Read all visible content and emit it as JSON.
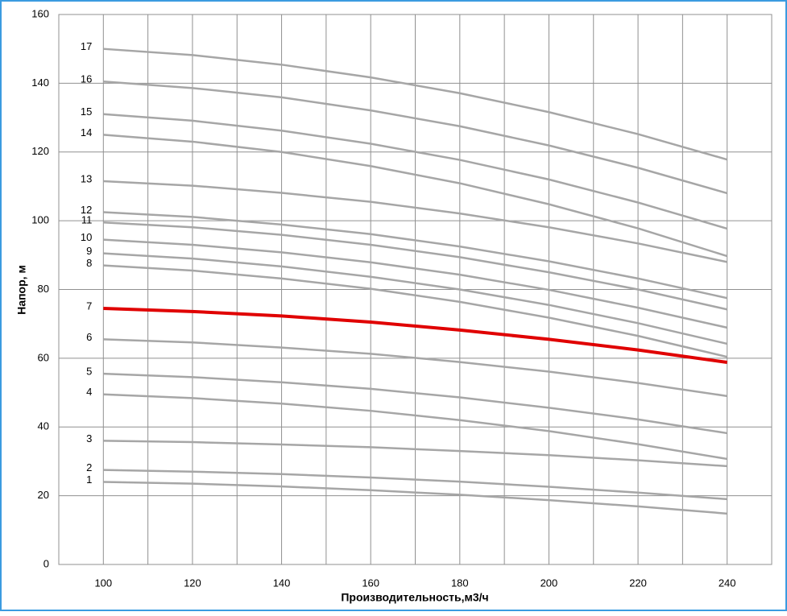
{
  "chart_data": {
    "type": "line",
    "xlabel": "Производительность,м3/ч",
    "ylabel": "Напор, м",
    "x": [
      100,
      120,
      140,
      160,
      180,
      200,
      220,
      240
    ],
    "xlim": [
      90,
      250
    ],
    "xticks": [
      100,
      120,
      140,
      160,
      180,
      200,
      220,
      240
    ],
    "ylim": [
      0,
      160
    ],
    "yticks": [
      0,
      20,
      40,
      60,
      80,
      100,
      120,
      140,
      160
    ],
    "grid": true,
    "series": [
      {
        "name": "1",
        "color": "#a6a6a6",
        "values": [
          24,
          23.5,
          22.7,
          21.6,
          20.3,
          18.7,
          16.9,
          14.8
        ]
      },
      {
        "name": "2",
        "color": "#a6a6a6",
        "values": [
          27.5,
          27.0,
          26.3,
          25.3,
          24.1,
          22.6,
          20.9,
          19.0
        ]
      },
      {
        "name": "3",
        "color": "#a6a6a6",
        "values": [
          36,
          35.6,
          34.9,
          34.1,
          33.0,
          31.8,
          30.3,
          28.6
        ]
      },
      {
        "name": "4",
        "color": "#a6a6a6",
        "values": [
          49.5,
          48.4,
          46.8,
          44.7,
          42.0,
          38.8,
          35.0,
          30.7
        ]
      },
      {
        "name": "5",
        "color": "#a6a6a6",
        "values": [
          55.5,
          54.5,
          53.0,
          51.1,
          48.6,
          45.6,
          42.2,
          38.2
        ]
      },
      {
        "name": "6",
        "color": "#a6a6a6",
        "values": [
          65.5,
          64.6,
          63.1,
          61.3,
          58.9,
          56.1,
          52.8,
          49.0
        ]
      },
      {
        "name": "7",
        "color": "#e00000",
        "values": [
          74.5,
          73.6,
          72.3,
          70.5,
          68.2,
          65.5,
          62.4,
          58.8
        ]
      },
      {
        "name": "8",
        "color": "#a6a6a6",
        "values": [
          87,
          85.5,
          83.2,
          80.2,
          76.4,
          71.8,
          66.5,
          60.4
        ]
      },
      {
        "name": "9",
        "color": "#a6a6a6",
        "values": [
          90.5,
          89.0,
          86.7,
          83.7,
          80.0,
          75.5,
          70.2,
          64.2
        ]
      },
      {
        "name": "10",
        "color": "#a6a6a6",
        "values": [
          94.5,
          93.0,
          90.8,
          87.9,
          84.3,
          79.9,
          74.7,
          68.9
        ]
      },
      {
        "name": "11",
        "color": "#a6a6a6",
        "values": [
          99.5,
          98.1,
          95.9,
          93.0,
          89.4,
          85.0,
          80.0,
          74.2
        ]
      },
      {
        "name": "12",
        "color": "#a6a6a6",
        "values": [
          102.5,
          101.1,
          98.9,
          96.1,
          92.5,
          88.2,
          83.2,
          77.5
        ]
      },
      {
        "name": "13",
        "color": "#a6a6a6",
        "values": [
          111.5,
          110.2,
          108.1,
          105.5,
          102.1,
          98.1,
          93.4,
          88.0
        ]
      },
      {
        "name": "14",
        "color": "#a6a6a6",
        "values": [
          125,
          123.0,
          120.0,
          115.9,
          110.9,
          104.8,
          97.8,
          89.7
        ]
      },
      {
        "name": "15",
        "color": "#a6a6a6",
        "values": [
          131,
          129.1,
          126.2,
          122.4,
          117.7,
          112.0,
          105.3,
          97.7
        ]
      },
      {
        "name": "16",
        "color": "#a6a6a6",
        "values": [
          140.5,
          138.6,
          135.9,
          132.1,
          127.5,
          121.9,
          115.4,
          108.0
        ]
      },
      {
        "name": "17",
        "color": "#a6a6a6",
        "values": [
          150,
          148.2,
          145.4,
          141.7,
          137.1,
          131.6,
          125.2,
          117.8
        ]
      }
    ]
  }
}
